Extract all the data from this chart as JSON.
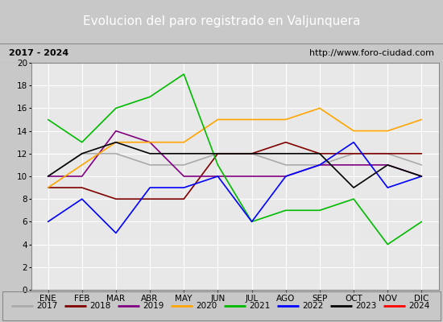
{
  "title": "Evolucion del paro registrado en Valjunquera",
  "subtitle_left": "2017 - 2024",
  "subtitle_right": "http://www.foro-ciudad.com",
  "months": [
    "ENE",
    "FEB",
    "MAR",
    "ABR",
    "MAY",
    "JUN",
    "JUL",
    "AGO",
    "SEP",
    "OCT",
    "NOV",
    "DIC"
  ],
  "series": {
    "2017": {
      "color": "#aaaaaa",
      "data": [
        10,
        12,
        12,
        11,
        11,
        12,
        12,
        11,
        11,
        12,
        12,
        11
      ]
    },
    "2018": {
      "color": "#800000",
      "data": [
        9,
        9,
        8,
        8,
        8,
        12,
        12,
        13,
        12,
        12,
        12,
        12
      ]
    },
    "2019": {
      "color": "#800080",
      "data": [
        10,
        10,
        14,
        13,
        10,
        10,
        10,
        10,
        11,
        11,
        11,
        10
      ]
    },
    "2020": {
      "color": "#FFA500",
      "data": [
        9,
        11,
        13,
        13,
        13,
        15,
        15,
        15,
        16,
        14,
        14,
        15
      ]
    },
    "2021": {
      "color": "#00BB00",
      "data": [
        15,
        13,
        16,
        17,
        19,
        11,
        6,
        7,
        7,
        8,
        4,
        6
      ]
    },
    "2022": {
      "color": "#0000FF",
      "data": [
        6,
        8,
        5,
        9,
        9,
        10,
        6,
        10,
        11,
        13,
        9,
        10
      ]
    },
    "2023": {
      "color": "#000000",
      "data": [
        10,
        12,
        13,
        12,
        12,
        12,
        12,
        12,
        12,
        9,
        11,
        10
      ]
    },
    "2024": {
      "color": "#FF0000",
      "data": [
        10,
        null,
        null,
        null,
        null,
        null,
        null,
        null,
        null,
        null,
        null,
        null
      ]
    }
  },
  "ylim": [
    0,
    20
  ],
  "yticks": [
    0,
    2,
    4,
    6,
    8,
    10,
    12,
    14,
    16,
    18,
    20
  ],
  "bg_title": "#4472C4",
  "bg_subtitle": "#F0F0F0",
  "bg_plot": "#E8E8E8",
  "grid_color": "#FFFFFF",
  "title_color": "#FFFFFF",
  "title_fontsize": 11,
  "subtitle_fontsize": 8,
  "legend_fontsize": 7.5,
  "axis_label_fontsize": 7.5
}
